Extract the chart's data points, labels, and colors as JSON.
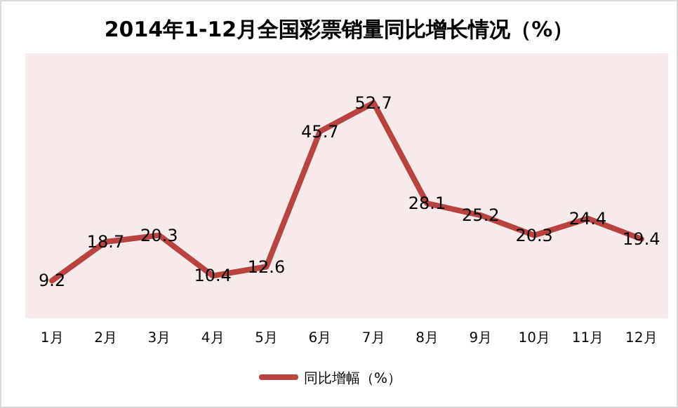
{
  "chart_data": {
    "type": "line",
    "title": "2014年1-12月全国彩票销量同比增长情况（%）",
    "categories": [
      "1月",
      "2月",
      "3月",
      "4月",
      "5月",
      "6月",
      "7月",
      "8月",
      "9月",
      "10月",
      "11月",
      "12月"
    ],
    "series": [
      {
        "name": "同比增幅（%）",
        "color": "#b8433f",
        "values": [
          9.2,
          18.7,
          20.3,
          10.4,
          12.6,
          45.7,
          52.7,
          28.1,
          25.2,
          20.3,
          24.4,
          19.4
        ]
      }
    ],
    "data_labels": true,
    "legend": "bottom",
    "marker": "none",
    "line_style": "solid",
    "grid": false
  }
}
